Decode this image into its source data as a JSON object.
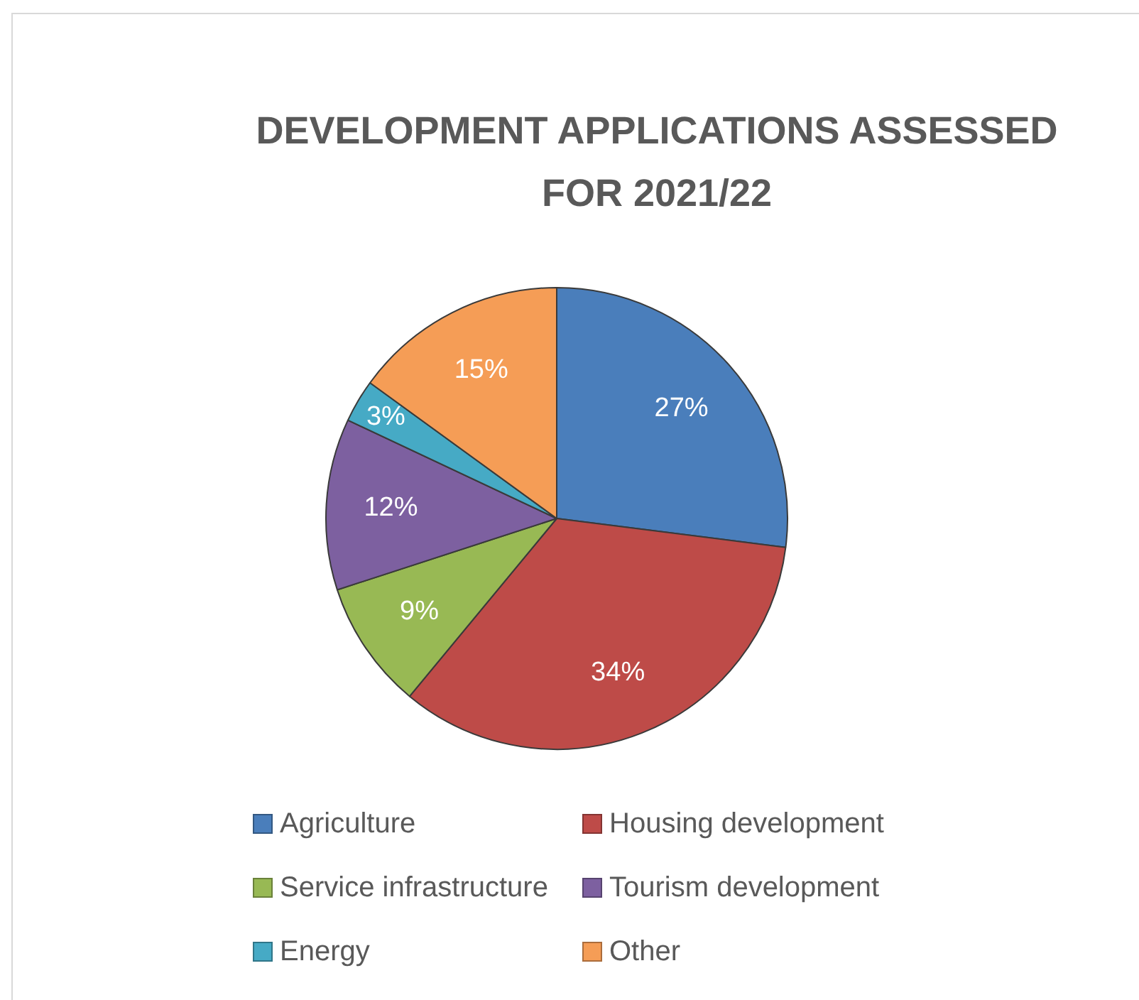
{
  "chart_data": {
    "type": "pie",
    "title": "DEVELOPMENT APPLICATIONS ASSESSED FOR 2021/22",
    "categories": [
      "Agriculture",
      "Housing development",
      "Service infrastructure",
      "Tourism development",
      "Energy",
      "Other"
    ],
    "values": [
      27,
      34,
      9,
      12,
      3,
      15
    ],
    "colors": [
      "#4a7ebb",
      "#be4b48",
      "#98b954",
      "#7d60a0",
      "#46aac5",
      "#f59d56"
    ],
    "value_labels": [
      "27%",
      "34%",
      "9%",
      "12%",
      "3%",
      "15%"
    ],
    "legend": "bottom"
  }
}
